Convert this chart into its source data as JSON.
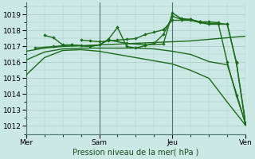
{
  "title": "Pression niveau de la mer( hPa )",
  "bg_color": "#cce8e4",
  "grid_color": "#aaccc8",
  "line_color": "#1a6b1a",
  "xlim": [
    0,
    72
  ],
  "ylim": [
    1011.5,
    1019.75
  ],
  "yticks": [
    1012,
    1013,
    1014,
    1015,
    1016,
    1017,
    1018,
    1019
  ],
  "xtick_labels": [
    "Mer",
    "Sam",
    "Jeu",
    "Ven"
  ],
  "xtick_positions": [
    0,
    24,
    48,
    72
  ],
  "series": [
    {
      "x": [
        0,
        6,
        12,
        18,
        24,
        30,
        36,
        42,
        48,
        54,
        60,
        66,
        72
      ],
      "y": [
        1015.2,
        1016.3,
        1016.75,
        1016.8,
        1016.7,
        1016.5,
        1016.3,
        1016.1,
        1015.9,
        1015.5,
        1015.0,
        1013.5,
        1012.05
      ],
      "marker": false,
      "lw": 1.0
    },
    {
      "x": [
        0,
        6,
        12,
        18,
        24,
        30,
        36,
        42,
        48,
        54,
        60,
        66,
        69,
        72
      ],
      "y": [
        1016.15,
        1016.65,
        1016.85,
        1016.9,
        1016.9,
        1016.9,
        1016.9,
        1016.85,
        1016.7,
        1016.5,
        1016.05,
        1015.85,
        1014.05,
        1012.1
      ],
      "marker": false,
      "lw": 1.0
    },
    {
      "x": [
        0,
        6,
        12,
        18,
        24,
        30,
        36,
        42,
        48,
        54,
        60,
        66,
        72
      ],
      "y": [
        1016.7,
        1016.9,
        1017.0,
        1017.05,
        1017.1,
        1017.15,
        1017.2,
        1017.25,
        1017.3,
        1017.35,
        1017.45,
        1017.55,
        1017.65
      ],
      "marker": false,
      "lw": 1.0
    },
    {
      "x": [
        3,
        9,
        15,
        21,
        24,
        27,
        30,
        33,
        36,
        39,
        42,
        45,
        48,
        51,
        54,
        57,
        60,
        63,
        66,
        69,
        72
      ],
      "y": [
        1016.9,
        1017.0,
        1017.1,
        1017.0,
        1017.1,
        1017.45,
        1018.2,
        1017.0,
        1016.9,
        1017.05,
        1017.2,
        1017.75,
        1018.9,
        1018.7,
        1018.7,
        1018.55,
        1018.45,
        1018.45,
        1018.4,
        1015.95,
        1012.2
      ],
      "marker": true,
      "lw": 1.0
    },
    {
      "x": [
        6,
        9,
        12,
        15,
        18,
        21,
        24,
        27,
        33,
        39,
        45,
        48,
        51,
        54,
        57,
        60,
        63,
        66,
        69,
        72
      ],
      "y": [
        1017.7,
        1017.55,
        1017.1,
        1017.1,
        1017.05,
        1017.0,
        1017.1,
        1017.4,
        1017.2,
        1017.1,
        1017.15,
        1019.1,
        1018.75,
        1018.7,
        1018.55,
        1018.55,
        1018.5,
        1016.0,
        1013.9,
        1012.15
      ],
      "marker": true,
      "lw": 1.0
    },
    {
      "x": [
        18,
        21,
        24,
        27,
        30,
        33,
        36,
        39,
        42,
        45,
        48,
        51,
        54,
        57,
        60,
        63,
        66,
        69,
        72
      ],
      "y": [
        1017.4,
        1017.35,
        1017.3,
        1017.35,
        1017.4,
        1017.45,
        1017.5,
        1017.75,
        1017.9,
        1018.05,
        1018.65,
        1018.65,
        1018.65,
        1018.5,
        1018.4,
        1018.4,
        1018.4,
        1016.0,
        1012.1
      ],
      "marker": true,
      "lw": 1.0
    }
  ]
}
